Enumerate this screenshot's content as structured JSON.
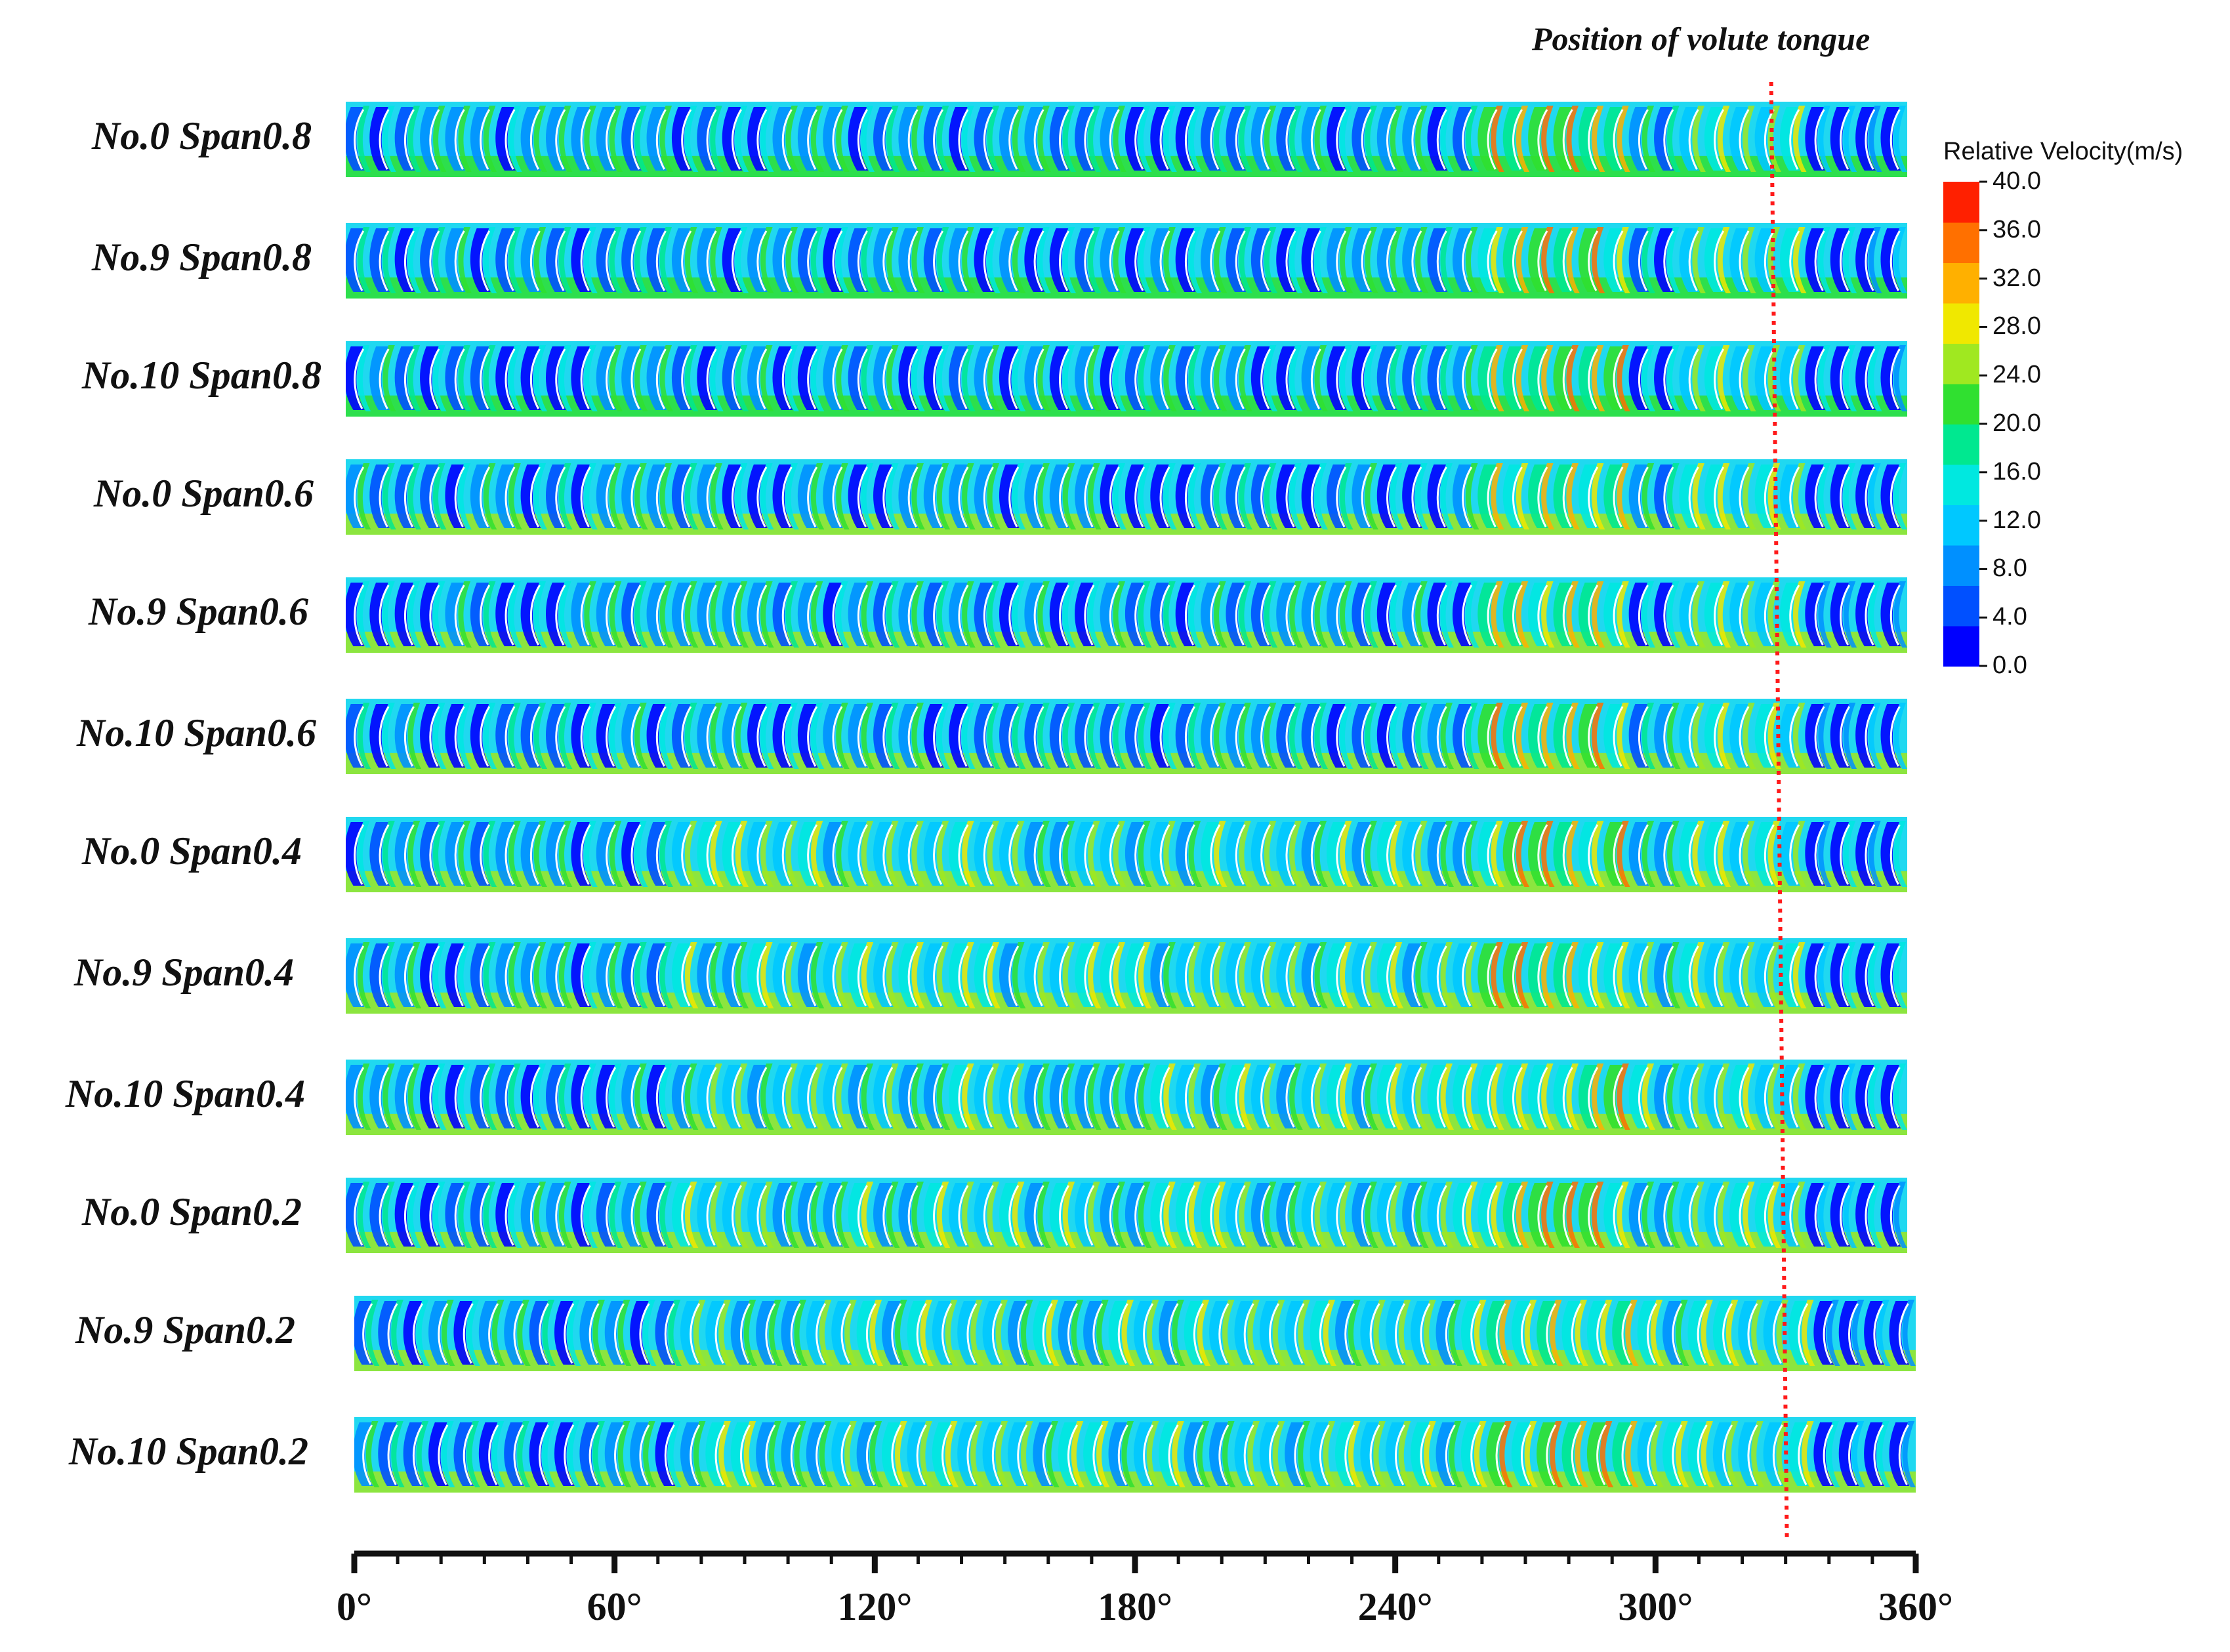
{
  "tongue_label": "Position of volute tongue",
  "tongue_angle_deg": 330,
  "rows": [
    {
      "label": "No.0 Span0.8"
    },
    {
      "label": "No.9 Span0.8"
    },
    {
      "label": "No.10 Span0.8"
    },
    {
      "label": "No.0 Span0.6"
    },
    {
      "label": "No.9 Span0.6"
    },
    {
      "label": "No.10 Span0.6"
    },
    {
      "label": "No.0 Span0.4"
    },
    {
      "label": "No.9 Span0.4"
    },
    {
      "label": "No.10 Span0.4"
    },
    {
      "label": "No.0 Span0.2"
    },
    {
      "label": "No.9 Span0.2"
    },
    {
      "label": "No.10 Span0.2"
    }
  ],
  "axis": {
    "ticks": [
      "0°",
      "60°",
      "120°",
      "180°",
      "240°",
      "300°",
      "360°"
    ],
    "range_deg": [
      0,
      360
    ]
  },
  "legend": {
    "title": "Relative Velocity(m/s)",
    "ticks": [
      "40.0",
      "36.0",
      "32.0",
      "28.0",
      "24.0",
      "20.0",
      "16.0",
      "12.0",
      "8.0",
      "4.0",
      "0.0"
    ],
    "range": [
      0,
      40
    ],
    "colors": [
      "#0000ff",
      "#0050ff",
      "#0090ff",
      "#00c8ff",
      "#00e8e0",
      "#00e890",
      "#30e030",
      "#a0e820",
      "#f0e800",
      "#ffb000",
      "#ff7000",
      "#ff2000"
    ]
  },
  "colors": {
    "tongue_line": "#ff1a1a",
    "blade": "#ffffff",
    "axis": "#111111"
  }
}
